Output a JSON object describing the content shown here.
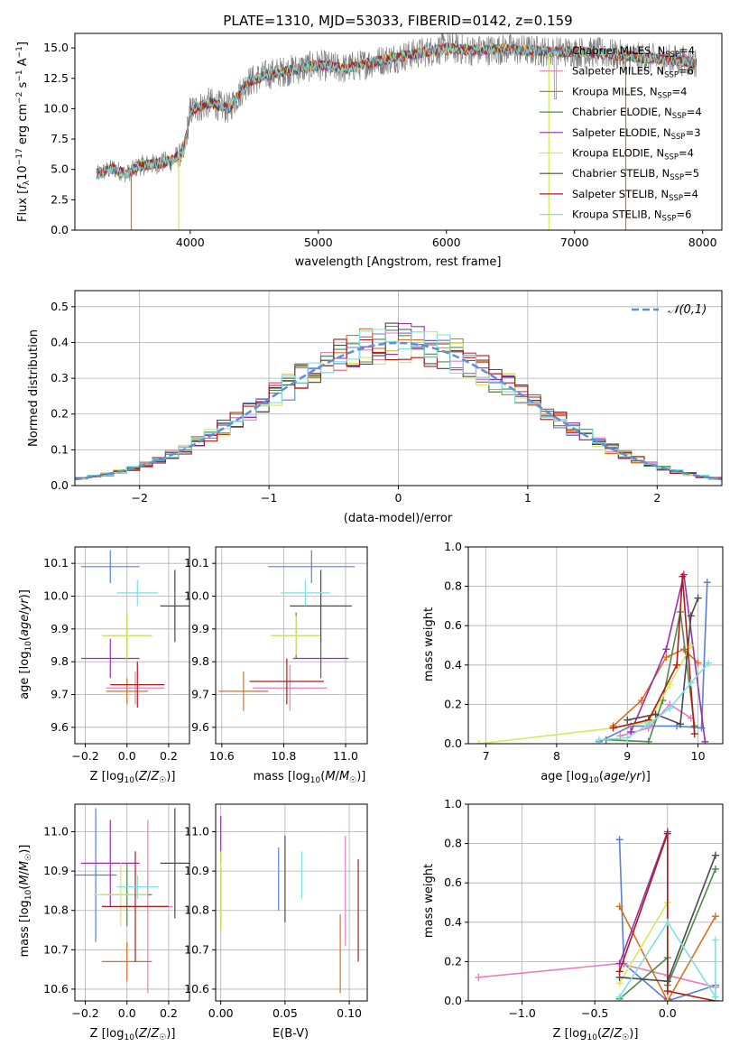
{
  "chart_data": [
    {
      "id": "spectrum",
      "type": "line",
      "title": "PLATE=1310, MJD=53033, FIBERID=0142, z=0.159",
      "xlabel": "wavelength [Angstrom, rest frame]",
      "ylabel": "Flux [f_λ 10⁻¹⁷ erg cm⁻² s⁻¹ A⁻¹]",
      "xlim": [
        3100,
        8150
      ],
      "ylim": [
        0,
        16.2
      ],
      "xticks": [
        4000,
        5000,
        6000,
        7000,
        8000
      ],
      "yticks": [
        0.0,
        2.5,
        5.0,
        7.5,
        10.0,
        12.5,
        15.0
      ],
      "ytick_labels": [
        "0.0",
        "2.5",
        "5.0",
        "7.5",
        "10.0",
        "12.5",
        "15.0"
      ],
      "grid": false,
      "legend_position": "top-right",
      "continuum": [
        [
          3270,
          4.6
        ],
        [
          3400,
          5.1
        ],
        [
          3500,
          4.6
        ],
        [
          3600,
          5.3
        ],
        [
          3750,
          5.5
        ],
        [
          3850,
          5.7
        ],
        [
          3950,
          6.4
        ],
        [
          4000,
          9.8
        ],
        [
          4150,
          10.5
        ],
        [
          4300,
          10.0
        ],
        [
          4450,
          12.2
        ],
        [
          4600,
          12.8
        ],
        [
          4800,
          13.2
        ],
        [
          5000,
          13.6
        ],
        [
          5200,
          13.3
        ],
        [
          5500,
          14.0
        ],
        [
          5800,
          14.6
        ],
        [
          6000,
          15.0
        ],
        [
          6200,
          14.8
        ],
        [
          6500,
          14.9
        ],
        [
          6800,
          14.7
        ],
        [
          7000,
          14.7
        ],
        [
          7200,
          14.6
        ],
        [
          7500,
          14.2
        ],
        [
          7800,
          14.0
        ],
        [
          7950,
          13.8
        ]
      ],
      "series": [
        {
          "name": "Chabrier MILES, N",
          "sub": "SSP",
          "suffix": "=4",
          "color": "#5b7fd6"
        },
        {
          "name": "Salpeter MILES, N",
          "sub": "SSP",
          "suffix": "=6",
          "color": "#e87fbf"
        },
        {
          "name": "Kroupa MILES, N",
          "sub": "SSP",
          "suffix": "=4",
          "color": "#d9711f"
        },
        {
          "name": "Chabrier ELODIE, N",
          "sub": "SSP",
          "suffix": "=4",
          "color": "#4f8a4a"
        },
        {
          "name": "Salpeter ELODIE, N",
          "sub": "SSP",
          "suffix": "=3",
          "color": "#9b2fae"
        },
        {
          "name": "Kroupa ELODIE, N",
          "sub": "SSP",
          "suffix": "=4",
          "color": "#d8e85a"
        },
        {
          "name": "Chabrier STELIB, N",
          "sub": "SSP",
          "suffix": "=5",
          "color": "#4a4a4a"
        },
        {
          "name": "Salpeter STELIB, N",
          "sub": "SSP",
          "suffix": "=4",
          "color": "#b11a1a"
        },
        {
          "name": "Kroupa STELIB, N",
          "sub": "SSP",
          "suffix": "=6",
          "color": "#7fe0e0"
        }
      ],
      "data_color": "#808080"
    },
    {
      "id": "residuals",
      "type": "histogram",
      "xlabel": "(data-model)/error",
      "ylabel": "Normed distribution",
      "xlim": [
        -2.5,
        2.5
      ],
      "ylim": [
        0,
        0.545
      ],
      "xticks": [
        -2,
        -1,
        0,
        1,
        2
      ],
      "xtick_labels": [
        "−2",
        "−1",
        "0",
        "1",
        "2"
      ],
      "yticks": [
        0.0,
        0.1,
        0.2,
        0.3,
        0.4,
        0.5
      ],
      "ytick_labels": [
        "0.0",
        "0.1",
        "0.2",
        "0.3",
        "0.4",
        "0.5"
      ],
      "grid": true,
      "legend": "𝒩(0,1)",
      "legend_position": "top-right",
      "gauss_color": "#5b8fdb",
      "bin_width": 0.1
    },
    {
      "id": "age_Z",
      "type": "errorbar",
      "xlabel": "Z [log₁₀(Z/Z☉)]",
      "ylabel": "age  [log₁₀(age/yr)]",
      "xlim": [
        -0.25,
        0.3
      ],
      "ylim": [
        9.55,
        10.15
      ],
      "xticks": [
        -0.2,
        0.0,
        0.2
      ],
      "xtick_labels": [
        "−0.2",
        "0.0",
        "0.2"
      ],
      "yticks": [
        9.6,
        9.7,
        9.8,
        9.9,
        10.0,
        10.1
      ],
      "ytick_labels": [
        "9.6",
        "9.7",
        "9.8",
        "9.9",
        "10.0",
        "10.1"
      ],
      "grid": true,
      "points": [
        {
          "x": -0.08,
          "y": 10.09,
          "xe": 0.14,
          "ye": 0.05,
          "color": "#5b7fd6"
        },
        {
          "x": 0.04,
          "y": 9.72,
          "xe": 0.14,
          "ye": 0.05,
          "color": "#e87fbf"
        },
        {
          "x": 0.0,
          "y": 9.71,
          "xe": 0.1,
          "ye": 0.04,
          "color": "#d9711f"
        },
        {
          "x": 0.0,
          "y": 9.88,
          "xe": 0.12,
          "ye": 0.07,
          "color": "#4f8a4a"
        },
        {
          "x": -0.08,
          "y": 9.81,
          "xe": 0.14,
          "ye": 0.06,
          "color": "#9b2fae"
        },
        {
          "x": 0.0,
          "y": 9.88,
          "xe": 0.12,
          "ye": 0.07,
          "color": "#d8e85a"
        },
        {
          "x": 0.23,
          "y": 9.97,
          "xe": 0.07,
          "ye": 0.11,
          "color": "#4a4a4a"
        },
        {
          "x": 0.05,
          "y": 9.73,
          "xe": 0.13,
          "ye": 0.07,
          "color": "#b11a1a"
        },
        {
          "x": 0.05,
          "y": 10.01,
          "xe": 0.1,
          "ye": 0.04,
          "color": "#7fe0e0"
        }
      ]
    },
    {
      "id": "age_mass",
      "type": "errorbar",
      "xlabel": "mass [log₁₀(M/M☉)]",
      "ylabel": "",
      "xlim": [
        10.58,
        11.07
      ],
      "ylim": [
        9.55,
        10.15
      ],
      "xticks": [
        10.6,
        10.8,
        11.0
      ],
      "xtick_labels": [
        "10.6",
        "10.8",
        "11.0"
      ],
      "yticks": [
        9.6,
        9.7,
        9.8,
        9.9,
        10.0,
        10.1
      ],
      "ytick_labels": [
        "9.6",
        "9.7",
        "9.8",
        "9.9",
        "10.0",
        "10.1"
      ],
      "grid": true,
      "points": [
        {
          "x": 10.89,
          "y": 10.09,
          "xe": 0.14,
          "ye": 0.05,
          "color": "#5b7fd6"
        },
        {
          "x": 10.82,
          "y": 9.72,
          "xe": 0.12,
          "ye": 0.07,
          "color": "#e87fbf"
        },
        {
          "x": 10.67,
          "y": 9.71,
          "xe": 0.08,
          "ye": 0.06,
          "color": "#d9711f"
        },
        {
          "x": 10.84,
          "y": 9.88,
          "xe": 0.08,
          "ye": 0.07,
          "color": "#4f8a4a"
        },
        {
          "x": 10.92,
          "y": 9.81,
          "xe": 0.09,
          "ye": 0.06,
          "color": "#9b2fae"
        },
        {
          "x": 10.84,
          "y": 9.88,
          "xe": 0.08,
          "ye": 0.06,
          "color": "#d8e85a"
        },
        {
          "x": 10.92,
          "y": 9.97,
          "xe": 0.1,
          "ye": 0.11,
          "color": "#4a4a4a"
        },
        {
          "x": 10.81,
          "y": 9.74,
          "xe": 0.12,
          "ye": 0.07,
          "color": "#b11a1a"
        },
        {
          "x": 10.87,
          "y": 10.01,
          "xe": 0.08,
          "ye": 0.04,
          "color": "#7fe0e0"
        }
      ]
    },
    {
      "id": "mw_age",
      "type": "line",
      "xlabel": "age  [log₁₀(age/yr)]",
      "ylabel": "mass weight",
      "xlim": [
        6.75,
        10.35
      ],
      "ylim": [
        0,
        1.0
      ],
      "xticks": [
        7,
        8,
        9,
        10
      ],
      "xtick_labels": [
        "7",
        "8",
        "9",
        "10"
      ],
      "yticks": [
        0.0,
        0.2,
        0.4,
        0.6,
        0.8,
        1.0
      ],
      "ytick_labels": [
        "0.0",
        "0.2",
        "0.4",
        "0.6",
        "0.8",
        "1.0"
      ],
      "grid": true,
      "lines": [
        {
          "color": "#5b7fd6",
          "pts": [
            [
              8.6,
              0.01
            ],
            [
              9.05,
              0.09
            ],
            [
              9.7,
              0.09
            ],
            [
              10.05,
              0.08
            ],
            [
              10.13,
              0.82
            ]
          ]
        },
        {
          "color": "#e87fbf",
          "pts": [
            [
              8.9,
              0.04
            ],
            [
              9.3,
              0.08
            ],
            [
              9.6,
              0.2
            ],
            [
              9.9,
              0.13
            ]
          ]
        },
        {
          "color": "#d9711f",
          "pts": [
            [
              8.8,
              0.09
            ],
            [
              9.2,
              0.22
            ],
            [
              9.55,
              0.44
            ],
            [
              9.8,
              0.48
            ],
            [
              10.0,
              0.41
            ]
          ]
        },
        {
          "color": "#4f8a4a",
          "pts": [
            [
              8.7,
              0.02
            ],
            [
              9.3,
              0.01
            ],
            [
              9.5,
              0.22
            ],
            [
              9.75,
              0.67
            ],
            [
              9.95,
              0.09
            ]
          ]
        },
        {
          "color": "#9b2fae",
          "pts": [
            [
              9.05,
              0.06
            ],
            [
              9.55,
              0.48
            ],
            [
              9.8,
              0.86
            ],
            [
              10.1,
              0.01
            ]
          ]
        },
        {
          "color": "#d8e85a",
          "pts": [
            [
              6.9,
              0.0
            ],
            [
              8.8,
              0.08
            ],
            [
              9.3,
              0.11
            ],
            [
              9.6,
              0.3
            ],
            [
              9.9,
              0.5
            ]
          ]
        },
        {
          "color": "#4a4a4a",
          "pts": [
            [
              9.0,
              0.12
            ],
            [
              9.4,
              0.15
            ],
            [
              9.75,
              0.1
            ],
            [
              9.9,
              0.65
            ],
            [
              10.0,
              0.74
            ]
          ]
        },
        {
          "color": "#b11a1a",
          "pts": [
            [
              8.8,
              0.08
            ],
            [
              9.3,
              0.12
            ],
            [
              9.7,
              0.4
            ],
            [
              9.78,
              0.85
            ],
            [
              9.95,
              0.05
            ]
          ]
        },
        {
          "color": "#7fe0e0",
          "pts": [
            [
              8.6,
              0.02
            ],
            [
              9.0,
              0.03
            ],
            [
              9.3,
              0.1
            ],
            [
              9.6,
              0.18
            ],
            [
              9.9,
              0.31
            ],
            [
              10.15,
              0.41
            ]
          ]
        }
      ]
    },
    {
      "id": "mass_Z",
      "type": "errorbar",
      "xlabel": "Z [log₁₀(Z/Z☉)]",
      "ylabel": "mass [log₁₀(M/M☉)]",
      "xlim": [
        -0.25,
        0.3
      ],
      "ylim": [
        10.57,
        11.07
      ],
      "xticks": [
        -0.2,
        0.0,
        0.2
      ],
      "xtick_labels": [
        "−0.2",
        "0.0",
        "0.2"
      ],
      "yticks": [
        10.6,
        10.7,
        10.8,
        10.9,
        11.0
      ],
      "ytick_labels": [
        "10.6",
        "10.7",
        "10.8",
        "10.9",
        "11.0"
      ],
      "grid": true,
      "points": [
        {
          "x": -0.15,
          "y": 10.89,
          "xe": 0.1,
          "ye": 0.17,
          "color": "#5b7fd6"
        },
        {
          "x": 0.1,
          "y": 10.81,
          "xe": 0.12,
          "ye": 0.22,
          "color": "#e87fbf"
        },
        {
          "x": 0.0,
          "y": 10.67,
          "xe": 0.12,
          "ye": 0.05,
          "color": "#d9711f"
        },
        {
          "x": 0.0,
          "y": 10.84,
          "xe": 0.12,
          "ye": 0.08,
          "color": "#4f8a4a"
        },
        {
          "x": -0.08,
          "y": 10.92,
          "xe": 0.14,
          "ye": 0.11,
          "color": "#9b2fae"
        },
        {
          "x": -0.03,
          "y": 10.84,
          "xe": 0.13,
          "ye": 0.08,
          "color": "#d8e85a"
        },
        {
          "x": 0.23,
          "y": 10.92,
          "xe": 0.07,
          "ye": 0.14,
          "color": "#4a4a4a"
        },
        {
          "x": 0.04,
          "y": 10.81,
          "xe": 0.16,
          "ye": 0.14,
          "color": "#b11a1a"
        },
        {
          "x": 0.05,
          "y": 10.86,
          "xe": 0.1,
          "ye": 0.03,
          "color": "#7fe0e0"
        }
      ]
    },
    {
      "id": "mass_ebv",
      "type": "errorbar",
      "xlabel": "E(B-V)",
      "ylabel": "",
      "xlim": [
        -0.004,
        0.114
      ],
      "ylim": [
        10.57,
        11.07
      ],
      "xticks": [
        0.0,
        0.05,
        0.1
      ],
      "xtick_labels": [
        "0.00",
        "0.05",
        "0.10"
      ],
      "yticks": [
        10.6,
        10.7,
        10.8,
        10.9,
        11.0
      ],
      "ytick_labels": [
        "10.6",
        "10.7",
        "10.8",
        "10.9",
        "11.0"
      ],
      "grid": true,
      "points": [
        {
          "x": 0.045,
          "y": 10.88,
          "xe": 0,
          "ye": 0.08,
          "color": "#5b7fd6"
        },
        {
          "x": 0.097,
          "y": 10.85,
          "xe": 0,
          "ye": 0.14,
          "color": "#e87fbf"
        },
        {
          "x": 0.093,
          "y": 10.69,
          "xe": 0,
          "ye": 0.1,
          "color": "#d9711f"
        },
        {
          "x": 0.0,
          "y": 10.83,
          "xe": 0,
          "ye": 0.08,
          "color": "#4f8a4a"
        },
        {
          "x": 0.0,
          "y": 10.98,
          "xe": 0,
          "ye": 0.06,
          "color": "#9b2fae"
        },
        {
          "x": 0.0,
          "y": 10.85,
          "xe": 0,
          "ye": 0.1,
          "color": "#d8e85a"
        },
        {
          "x": 0.05,
          "y": 10.88,
          "xe": 0,
          "ye": 0.11,
          "color": "#4a4a4a"
        },
        {
          "x": 0.107,
          "y": 10.8,
          "xe": 0,
          "ye": 0.13,
          "color": "#b11a1a"
        },
        {
          "x": 0.063,
          "y": 10.89,
          "xe": 0,
          "ye": 0.06,
          "color": "#7fe0e0"
        }
      ]
    },
    {
      "id": "mw_Z",
      "type": "line",
      "xlabel": "Z [log₁₀(Z/Z☉)]",
      "ylabel": "mass weight",
      "xlim": [
        -1.37,
        0.38
      ],
      "ylim": [
        0,
        1.0
      ],
      "xticks": [
        -1.0,
        -0.5,
        0.0
      ],
      "xtick_labels": [
        "−1.0",
        "−0.5",
        "0.0"
      ],
      "yticks": [
        0.0,
        0.2,
        0.4,
        0.6,
        0.8,
        1.0
      ],
      "ytick_labels": [
        "0.0",
        "0.2",
        "0.4",
        "0.6",
        "0.8",
        "1.0"
      ],
      "grid": true,
      "lines": [
        {
          "color": "#5b7fd6",
          "pts": [
            [
              -0.33,
              0.82
            ],
            [
              -0.3,
              0.19
            ],
            [
              0.0,
              0.0
            ],
            [
              0.33,
              0.08
            ]
          ]
        },
        {
          "color": "#e87fbf",
          "pts": [
            [
              -1.3,
              0.12
            ],
            [
              -0.33,
              0.19
            ],
            [
              0.0,
              0.13
            ],
            [
              0.33,
              0.07
            ]
          ]
        },
        {
          "color": "#d9711f",
          "pts": [
            [
              -0.33,
              0.48
            ],
            [
              0.0,
              0.0
            ],
            [
              0.33,
              0.43
            ]
          ]
        },
        {
          "color": "#4f8a4a",
          "pts": [
            [
              -0.33,
              0.01
            ],
            [
              0.0,
              0.22
            ],
            [
              0.0,
              0.08
            ],
            [
              0.33,
              0.67
            ]
          ]
        },
        {
          "color": "#9b2fae",
          "pts": [
            [
              -0.33,
              0.19
            ],
            [
              0.0,
              0.86
            ],
            [
              0.0,
              0.01
            ]
          ]
        },
        {
          "color": "#d8e85a",
          "pts": [
            [
              -0.33,
              0.09
            ],
            [
              0.0,
              0.5
            ],
            [
              0.0,
              0.0
            ]
          ]
        },
        {
          "color": "#4a4a4a",
          "pts": [
            [
              -0.33,
              0.12
            ],
            [
              0.0,
              0.1
            ],
            [
              0.33,
              0.74
            ]
          ]
        },
        {
          "color": "#b11a1a",
          "pts": [
            [
              -0.33,
              0.15
            ],
            [
              0.0,
              0.85
            ],
            [
              0.0,
              0.05
            ],
            [
              0.33,
              0.0
            ]
          ]
        },
        {
          "color": "#7fe0e0",
          "pts": [
            [
              -0.33,
              0.02
            ],
            [
              0.0,
              0.4
            ],
            [
              0.33,
              0.02
            ],
            [
              0.33,
              0.31
            ]
          ]
        }
      ]
    }
  ]
}
